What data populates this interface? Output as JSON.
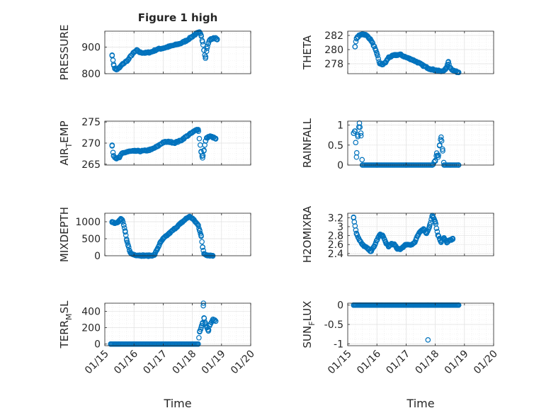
{
  "figure": {
    "title": "Figure 1 high",
    "xlabel": "Time",
    "x_tick_labels": [
      "01/15",
      "01/16",
      "01/17",
      "01/18",
      "01/19",
      "01/20"
    ]
  },
  "chart_data": [
    {
      "type": "scatter",
      "ylabel": "PRESSURE",
      "yticks": [
        "800",
        "900"
      ],
      "ylim": [
        800,
        960
      ],
      "anchors": [
        [
          15.25,
          870
        ],
        [
          15.3,
          835
        ],
        [
          15.35,
          818
        ],
        [
          15.4,
          815
        ],
        [
          15.5,
          822
        ],
        [
          15.6,
          835
        ],
        [
          15.8,
          852
        ],
        [
          15.9,
          868
        ],
        [
          16.0,
          880
        ],
        [
          16.1,
          888
        ],
        [
          16.2,
          880
        ],
        [
          16.4,
          878
        ],
        [
          16.6,
          882
        ],
        [
          16.8,
          892
        ],
        [
          17.0,
          896
        ],
        [
          17.2,
          902
        ],
        [
          17.4,
          908
        ],
        [
          17.6,
          914
        ],
        [
          17.8,
          925
        ],
        [
          18.0,
          940
        ],
        [
          18.15,
          952
        ],
        [
          18.25,
          955
        ],
        [
          18.3,
          945
        ],
        [
          18.35,
          920
        ],
        [
          18.4,
          888
        ],
        [
          18.45,
          858
        ],
        [
          18.5,
          895
        ],
        [
          18.55,
          915
        ],
        [
          18.6,
          928
        ],
        [
          18.7,
          932
        ],
        [
          18.8,
          935
        ],
        [
          18.85,
          928
        ]
      ],
      "n": 120,
      "color": "#0072BD"
    },
    {
      "type": "scatter",
      "ylabel": "THETA",
      "yticks": [
        "278",
        "280",
        "282"
      ],
      "ylim": [
        276.6,
        282.6
      ],
      "anchors": [
        [
          15.25,
          280.4
        ],
        [
          15.3,
          281.6
        ],
        [
          15.4,
          282.0
        ],
        [
          15.5,
          282.2
        ],
        [
          15.6,
          282.1
        ],
        [
          15.7,
          281.8
        ],
        [
          15.8,
          281.3
        ],
        [
          15.9,
          280.5
        ],
        [
          16.0,
          279.4
        ],
        [
          16.1,
          278.0
        ],
        [
          16.2,
          277.9
        ],
        [
          16.3,
          278.2
        ],
        [
          16.4,
          278.9
        ],
        [
          16.6,
          279.2
        ],
        [
          16.8,
          279.3
        ],
        [
          17.0,
          278.9
        ],
        [
          17.2,
          278.6
        ],
        [
          17.4,
          278.2
        ],
        [
          17.6,
          277.7
        ],
        [
          17.8,
          277.3
        ],
        [
          18.0,
          277.1
        ],
        [
          18.2,
          276.9
        ],
        [
          18.35,
          277.2
        ],
        [
          18.4,
          277.6
        ],
        [
          18.45,
          278.3
        ],
        [
          18.5,
          277.5
        ],
        [
          18.6,
          277.1
        ],
        [
          18.7,
          276.9
        ],
        [
          18.8,
          276.8
        ]
      ],
      "n": 130,
      "color": "#0072BD"
    },
    {
      "type": "scatter",
      "ylabel": "AIR_TEMP",
      "yticks": [
        "265",
        "270",
        "275"
      ],
      "ylim": [
        264.8,
        275.2
      ],
      "anchors": [
        [
          15.25,
          269.5
        ],
        [
          15.3,
          267.0
        ],
        [
          15.4,
          266.3
        ],
        [
          15.5,
          266.6
        ],
        [
          15.6,
          267.6
        ],
        [
          15.8,
          268.0
        ],
        [
          16.0,
          268.1
        ],
        [
          16.2,
          268.1
        ],
        [
          16.4,
          268.2
        ],
        [
          16.6,
          268.5
        ],
        [
          16.8,
          269.2
        ],
        [
          17.0,
          270.2
        ],
        [
          17.2,
          270.3
        ],
        [
          17.4,
          270.1
        ],
        [
          17.6,
          270.6
        ],
        [
          17.8,
          271.6
        ],
        [
          18.0,
          272.5
        ],
        [
          18.15,
          273.2
        ],
        [
          18.2,
          273.2
        ],
        [
          18.3,
          268.0
        ],
        [
          18.35,
          266.5
        ],
        [
          18.4,
          268.3
        ],
        [
          18.45,
          270.5
        ],
        [
          18.5,
          271.3
        ],
        [
          18.6,
          271.6
        ],
        [
          18.7,
          271.4
        ],
        [
          18.8,
          271.0
        ]
      ],
      "n": 115,
      "color": "#0072BD"
    },
    {
      "type": "scatter",
      "ylabel": "RAINFALL",
      "yticks": [
        "0",
        "0.5",
        "1"
      ],
      "ylim": [
        0,
        1.1
      ],
      "anchors": [
        [
          15.2,
          0.8
        ],
        [
          15.25,
          0.85
        ],
        [
          15.3,
          0.2
        ],
        [
          15.35,
          0.75
        ],
        [
          15.4,
          1.05
        ],
        [
          15.45,
          0.8
        ],
        [
          15.5,
          0
        ],
        [
          16.0,
          0
        ],
        [
          17.0,
          0
        ],
        [
          17.9,
          0
        ],
        [
          18.0,
          0.1
        ],
        [
          18.05,
          0.3
        ],
        [
          18.1,
          0.2
        ],
        [
          18.15,
          0.5
        ],
        [
          18.2,
          0.7
        ],
        [
          18.25,
          0.4
        ],
        [
          18.3,
          0
        ],
        [
          18.8,
          0
        ]
      ],
      "n": 100,
      "color": "#0072BD"
    },
    {
      "type": "scatter",
      "ylabel": "MIXDEPTH",
      "yticks": [
        "0",
        "500",
        "1000"
      ],
      "ylim": [
        0,
        1250
      ],
      "anchors": [
        [
          15.25,
          1000
        ],
        [
          15.35,
          960
        ],
        [
          15.45,
          1000
        ],
        [
          15.55,
          1080
        ],
        [
          15.6,
          1050
        ],
        [
          15.65,
          900
        ],
        [
          15.7,
          700
        ],
        [
          15.75,
          450
        ],
        [
          15.8,
          300
        ],
        [
          15.85,
          150
        ],
        [
          15.9,
          60
        ],
        [
          16.0,
          30
        ],
        [
          16.2,
          10
        ],
        [
          16.5,
          0
        ],
        [
          16.7,
          20
        ],
        [
          16.8,
          200
        ],
        [
          16.9,
          380
        ],
        [
          17.0,
          500
        ],
        [
          17.2,
          650
        ],
        [
          17.4,
          800
        ],
        [
          17.6,
          950
        ],
        [
          17.8,
          1100
        ],
        [
          17.9,
          1150
        ],
        [
          18.0,
          1100
        ],
        [
          18.1,
          1000
        ],
        [
          18.2,
          900
        ],
        [
          18.25,
          750
        ],
        [
          18.3,
          600
        ],
        [
          18.35,
          250
        ],
        [
          18.4,
          60
        ],
        [
          18.5,
          20
        ],
        [
          18.6,
          10
        ],
        [
          18.7,
          5
        ]
      ],
      "n": 140,
      "color": "#0072BD"
    },
    {
      "type": "scatter",
      "ylabel": "H2OMIXRA",
      "yticks": [
        "2.4",
        "2.6",
        "2.8",
        "3",
        "3.2"
      ],
      "ylim": [
        2.35,
        3.3
      ],
      "anchors": [
        [
          15.2,
          3.2
        ],
        [
          15.3,
          2.85
        ],
        [
          15.4,
          2.7
        ],
        [
          15.5,
          2.6
        ],
        [
          15.6,
          2.55
        ],
        [
          15.7,
          2.5
        ],
        [
          15.8,
          2.45
        ],
        [
          15.9,
          2.55
        ],
        [
          16.0,
          2.7
        ],
        [
          16.1,
          2.82
        ],
        [
          16.2,
          2.8
        ],
        [
          16.3,
          2.65
        ],
        [
          16.4,
          2.55
        ],
        [
          16.5,
          2.62
        ],
        [
          16.6,
          2.6
        ],
        [
          16.7,
          2.5
        ],
        [
          16.8,
          2.5
        ],
        [
          16.9,
          2.55
        ],
        [
          17.0,
          2.6
        ],
        [
          17.2,
          2.6
        ],
        [
          17.3,
          2.65
        ],
        [
          17.4,
          2.8
        ],
        [
          17.5,
          2.9
        ],
        [
          17.6,
          2.95
        ],
        [
          17.7,
          2.85
        ],
        [
          17.8,
          3.0
        ],
        [
          17.9,
          3.25
        ],
        [
          18.0,
          3.1
        ],
        [
          18.1,
          2.8
        ],
        [
          18.2,
          2.65
        ],
        [
          18.3,
          2.75
        ],
        [
          18.4,
          2.65
        ],
        [
          18.5,
          2.7
        ],
        [
          18.6,
          2.72
        ]
      ],
      "n": 135,
      "color": "#0072BD"
    },
    {
      "type": "scatter",
      "ylabel": "TERR_MSL",
      "yticks": [
        "0",
        "200",
        "400"
      ],
      "ylim": [
        -20,
        500
      ],
      "anchors": [
        [
          15.2,
          0
        ],
        [
          16.0,
          0
        ],
        [
          17.0,
          0
        ],
        [
          18.0,
          0
        ],
        [
          18.2,
          0
        ],
        [
          18.25,
          150
        ],
        [
          18.3,
          200
        ],
        [
          18.35,
          260
        ],
        [
          18.38,
          500
        ],
        [
          18.4,
          320
        ],
        [
          18.45,
          250
        ],
        [
          18.5,
          200
        ],
        [
          18.55,
          160
        ],
        [
          18.6,
          240
        ],
        [
          18.7,
          300
        ],
        [
          18.8,
          280
        ]
      ],
      "n": 120,
      "color": "#0072BD"
    },
    {
      "type": "scatter",
      "ylabel": "SUN_FLUX",
      "yticks": [
        "-1",
        "-0.5",
        "0"
      ],
      "ylim": [
        -1.05,
        0.05
      ],
      "anchors": [
        [
          15.2,
          0
        ],
        [
          16.0,
          0
        ],
        [
          17.0,
          0
        ],
        [
          17.74,
          0
        ],
        [
          17.75,
          -0.9
        ],
        [
          17.76,
          0
        ],
        [
          18.0,
          0
        ],
        [
          18.8,
          0
        ]
      ],
      "n": 130,
      "color": "#0072BD"
    }
  ]
}
